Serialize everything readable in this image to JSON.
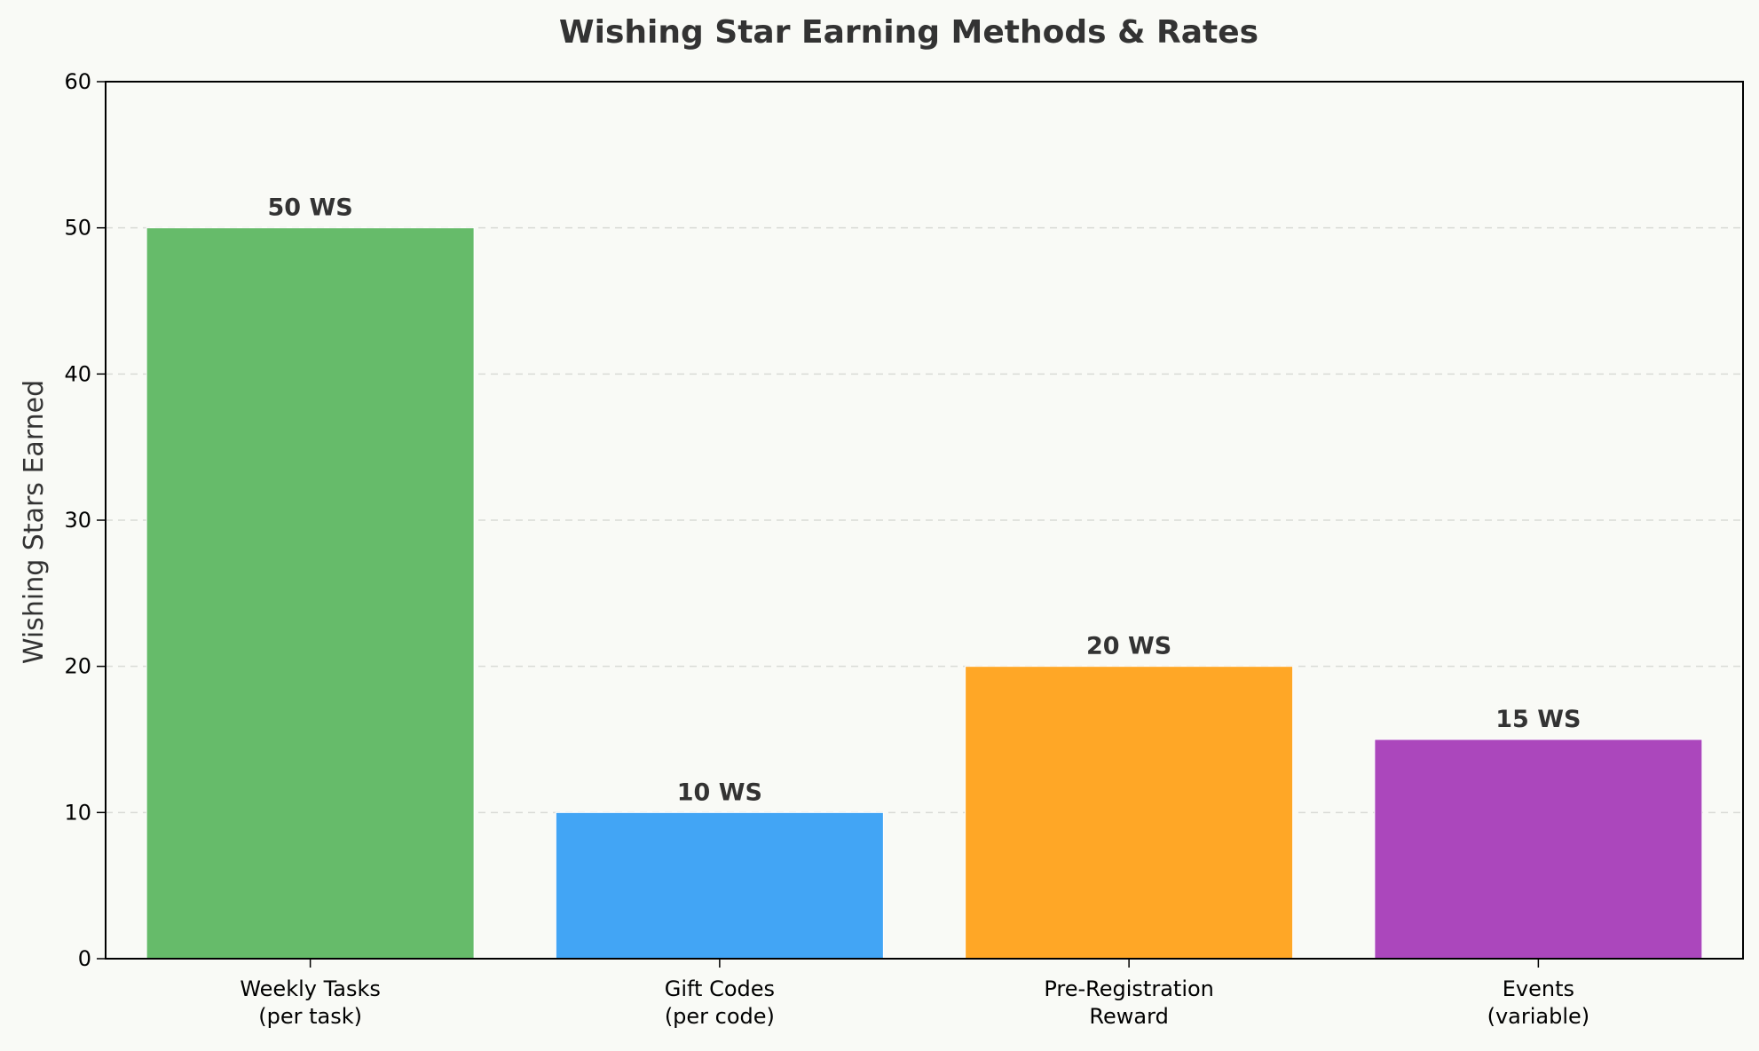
{
  "chart_data": {
    "type": "bar",
    "title": "Wishing Star Earning Methods & Rates",
    "xlabel": "",
    "ylabel": "Wishing Stars Earned",
    "ylim": [
      0,
      60
    ],
    "yticks": [
      0,
      10,
      20,
      30,
      40,
      50,
      60
    ],
    "grid": "y-dashed",
    "categories": [
      [
        "Weekly Tasks",
        "(per task)"
      ],
      [
        "Gift Codes",
        "(per code)"
      ],
      [
        "Pre-Registration",
        "Reward"
      ],
      [
        "Events",
        "(variable)"
      ]
    ],
    "values": [
      50,
      10,
      20,
      15
    ],
    "value_labels": [
      "50 WS",
      "10 WS",
      "20 WS",
      "15 WS"
    ],
    "colors": [
      "#66bb6a",
      "#42a5f5",
      "#ffa726",
      "#ab47bc"
    ]
  }
}
